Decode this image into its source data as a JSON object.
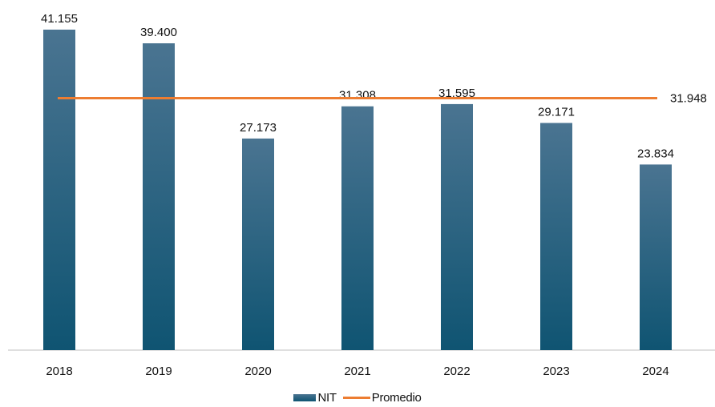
{
  "chart_data": {
    "type": "bar",
    "categories": [
      "2018",
      "2019",
      "2020",
      "2021",
      "2022",
      "2023",
      "2024"
    ],
    "series": [
      {
        "name": "NIT",
        "type": "bar",
        "values": [
          41155,
          39400,
          27173,
          31308,
          31595,
          29171,
          23834
        ],
        "labels": [
          "41.155",
          "39.400",
          "27.173",
          "31.308",
          "31.595",
          "29.171",
          "23.834"
        ]
      },
      {
        "name": "Promedio",
        "type": "line",
        "value": 31948,
        "label": "31.948"
      }
    ],
    "ylim": [
      0,
      45000
    ],
    "grid": false,
    "legend_position": "bottom",
    "colors": {
      "bar_top": "#4a7491",
      "bar_bottom": "#0f5472",
      "average_line": "#ed7d31",
      "axis": "#bfbfbf"
    }
  }
}
